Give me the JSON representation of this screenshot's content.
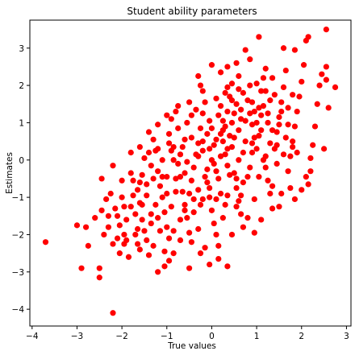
{
  "chart_data": {
    "type": "scatter",
    "title": "Student ability parameters",
    "xlabel": "True values",
    "ylabel": "Estimates",
    "xlim": [
      -4.05,
      3.1
    ],
    "ylim": [
      -4.45,
      3.75
    ],
    "xticks": [
      -4,
      -3,
      -2,
      -1,
      0,
      1,
      2,
      3
    ],
    "yticks": [
      -4,
      -3,
      -2,
      -1,
      0,
      1,
      2,
      3
    ],
    "grid": false,
    "marker_color": "#ff0000",
    "points": [
      [
        -3.7,
        -2.2
      ],
      [
        -2.2,
        -4.1
      ],
      [
        -2.9,
        -2.9
      ],
      [
        -2.5,
        -2.9
      ],
      [
        -2.5,
        -3.15
      ],
      [
        -3.0,
        -1.75
      ],
      [
        -2.8,
        -1.8
      ],
      [
        -2.75,
        -2.3
      ],
      [
        -2.6,
        -1.55
      ],
      [
        -2.45,
        -1.35
      ],
      [
        -2.45,
        -0.5
      ],
      [
        -2.2,
        -0.15
      ],
      [
        -2.35,
        -1.05
      ],
      [
        -2.15,
        -1.3
      ],
      [
        -2.3,
        -1.8
      ],
      [
        -2.1,
        -2.1
      ],
      [
        -1.95,
        -2.25
      ],
      [
        -1.85,
        -2.6
      ],
      [
        -2.05,
        -2.5
      ],
      [
        -2.2,
        -2.25
      ],
      [
        -1.9,
        -2.15
      ],
      [
        -1.8,
        -0.35
      ],
      [
        -1.65,
        -0.8
      ],
      [
        -1.6,
        -1.15
      ],
      [
        -1.55,
        -1.6
      ],
      [
        -1.5,
        -1.9
      ],
      [
        -1.7,
        -2.0
      ],
      [
        -1.45,
        -2.15
      ],
      [
        -1.6,
        -2.4
      ],
      [
        -1.3,
        -2.3
      ],
      [
        -1.2,
        -3.0
      ],
      [
        -1.05,
        -2.85
      ],
      [
        -0.95,
        -2.7
      ],
      [
        -0.85,
        -2.5
      ],
      [
        -0.5,
        -2.9
      ],
      [
        -0.25,
        -2.5
      ],
      [
        -0.05,
        -2.8
      ],
      [
        0.15,
        -2.65
      ],
      [
        0.35,
        -2.85
      ],
      [
        -1.5,
        0.05
      ],
      [
        -1.4,
        0.2
      ],
      [
        -1.3,
        0.55
      ],
      [
        -1.25,
        0.25
      ],
      [
        -1.2,
        -0.3
      ],
      [
        -1.15,
        -0.7
      ],
      [
        -1.1,
        -1.0
      ],
      [
        -1.05,
        -1.4
      ],
      [
        -1.0,
        -1.8
      ],
      [
        -0.95,
        -2.1
      ],
      [
        -0.9,
        1.1
      ],
      [
        -0.95,
        0.7
      ],
      [
        -0.85,
        0.35
      ],
      [
        -0.8,
        1.3
      ],
      [
        -0.75,
        -0.1
      ],
      [
        -0.7,
        -0.45
      ],
      [
        -0.65,
        -0.85
      ],
      [
        -0.6,
        -1.2
      ],
      [
        -0.55,
        -1.55
      ],
      [
        -0.5,
        -1.95
      ],
      [
        -0.45,
        -2.2
      ],
      [
        -0.4,
        -0.2
      ],
      [
        -0.35,
        0.15
      ],
      [
        -0.3,
        0.45
      ],
      [
        -0.25,
        0.85
      ],
      [
        -0.2,
        1.25
      ],
      [
        -0.15,
        1.55
      ],
      [
        -0.1,
        -0.6
      ],
      [
        -0.05,
        -1.0
      ],
      [
        0.0,
        -1.35
      ],
      [
        0.05,
        -1.7
      ],
      [
        0.1,
        -2.0
      ],
      [
        0.15,
        -2.3
      ],
      [
        0.2,
        0.1
      ],
      [
        0.25,
        0.5
      ],
      [
        0.3,
        0.9
      ],
      [
        0.35,
        1.3
      ],
      [
        0.4,
        1.7
      ],
      [
        0.45,
        2.05
      ],
      [
        0.5,
        -0.35
      ],
      [
        0.55,
        -0.75
      ],
      [
        0.6,
        -1.1
      ],
      [
        0.65,
        -1.45
      ],
      [
        0.7,
        -1.8
      ],
      [
        0.75,
        2.95
      ],
      [
        0.85,
        2.7
      ],
      [
        1.05,
        3.3
      ],
      [
        0.9,
        0.2
      ],
      [
        0.95,
        0.6
      ],
      [
        1.0,
        1.0
      ],
      [
        1.05,
        1.4
      ],
      [
        1.1,
        1.85
      ],
      [
        1.15,
        2.2
      ],
      [
        1.2,
        -0.2
      ],
      [
        1.25,
        -0.55
      ],
      [
        1.3,
        -0.9
      ],
      [
        1.35,
        -1.3
      ],
      [
        1.1,
        -1.6
      ],
      [
        0.95,
        -1.95
      ],
      [
        1.4,
        0.3
      ],
      [
        1.45,
        0.75
      ],
      [
        1.5,
        1.15
      ],
      [
        1.55,
        1.55
      ],
      [
        1.6,
        1.95
      ],
      [
        1.65,
        2.4
      ],
      [
        1.6,
        3.0
      ],
      [
        1.7,
        -0.3
      ],
      [
        1.75,
        0.1
      ],
      [
        1.8,
        0.5
      ],
      [
        1.85,
        0.9
      ],
      [
        1.9,
        1.3
      ],
      [
        1.95,
        1.7
      ],
      [
        2.0,
        2.1
      ],
      [
        2.05,
        2.55
      ],
      [
        2.1,
        -0.45
      ],
      [
        2.15,
        -0.65
      ],
      [
        2.2,
        -0.3
      ],
      [
        2.25,
        0.4
      ],
      [
        2.3,
        0.9
      ],
      [
        2.35,
        1.5
      ],
      [
        2.4,
        2.0
      ],
      [
        2.45,
        2.3
      ],
      [
        2.55,
        2.15
      ],
      [
        2.6,
        1.4
      ],
      [
        2.5,
        0.3
      ],
      [
        2.55,
        2.5
      ],
      [
        2.55,
        3.5
      ],
      [
        2.1,
        3.2
      ],
      [
        2.15,
        3.3
      ],
      [
        2.75,
        1.95
      ],
      [
        1.85,
        2.95
      ],
      [
        -2.0,
        -1.0
      ],
      [
        -1.9,
        -1.6
      ],
      [
        -1.8,
        -1.25
      ],
      [
        -1.75,
        -0.55
      ],
      [
        -1.7,
        -1.45
      ],
      [
        -1.65,
        -1.85
      ],
      [
        -1.55,
        -0.4
      ],
      [
        -1.45,
        -0.95
      ],
      [
        -1.35,
        -1.7
      ],
      [
        -1.35,
        -0.15
      ],
      [
        -1.25,
        -1.2
      ],
      [
        -1.15,
        -1.9
      ],
      [
        -1.1,
        0.0
      ],
      [
        -1.0,
        -0.45
      ],
      [
        -0.95,
        0.45
      ],
      [
        -0.9,
        -1.25
      ],
      [
        -0.85,
        0.0
      ],
      [
        -0.8,
        -0.85
      ],
      [
        -0.75,
        0.85
      ],
      [
        -0.7,
        -1.6
      ],
      [
        -0.65,
        0.35
      ],
      [
        -0.6,
        -0.35
      ],
      [
        -0.55,
        1.0
      ],
      [
        -0.5,
        -0.9
      ],
      [
        -0.45,
        0.6
      ],
      [
        -0.4,
        -1.4
      ],
      [
        -0.35,
        1.35
      ],
      [
        -0.3,
        -0.8
      ],
      [
        -0.25,
        -1.2
      ],
      [
        -0.2,
        0.25
      ],
      [
        -0.15,
        -0.45
      ],
      [
        -0.1,
        0.7
      ],
      [
        -0.05,
        1.05
      ],
      [
        0.0,
        0.0
      ],
      [
        0.05,
        0.4
      ],
      [
        0.1,
        -0.3
      ],
      [
        0.15,
        1.2
      ],
      [
        0.2,
        -0.9
      ],
      [
        0.25,
        0.8
      ],
      [
        0.3,
        -1.2
      ],
      [
        0.35,
        0.3
      ],
      [
        0.4,
        -0.4
      ],
      [
        0.45,
        1.0
      ],
      [
        0.5,
        0.6
      ],
      [
        0.55,
        1.5
      ],
      [
        0.6,
        0.0
      ],
      [
        0.65,
        1.1
      ],
      [
        0.7,
        -0.6
      ],
      [
        0.75,
        0.5
      ],
      [
        0.8,
        1.6
      ],
      [
        0.85,
        -0.2
      ],
      [
        0.9,
        0.95
      ],
      [
        0.95,
        -1.05
      ],
      [
        1.0,
        0.3
      ],
      [
        1.05,
        -0.45
      ],
      [
        1.1,
        0.8
      ],
      [
        1.15,
        1.45
      ],
      [
        1.2,
        0.1
      ],
      [
        1.25,
        1.0
      ],
      [
        1.3,
        0.45
      ],
      [
        1.35,
        -0.7
      ],
      [
        1.4,
        1.75
      ],
      [
        1.45,
        -0.1
      ],
      [
        1.5,
        0.95
      ],
      [
        1.55,
        -0.9
      ],
      [
        1.65,
        0.6
      ],
      [
        1.7,
        1.4
      ],
      [
        1.75,
        -0.75
      ],
      [
        1.8,
        1.75
      ],
      [
        1.9,
        0.2
      ],
      [
        0.2,
        2.35
      ],
      [
        0.0,
        2.55
      ],
      [
        0.35,
        2.5
      ],
      [
        -0.3,
        2.25
      ],
      [
        0.55,
        2.6
      ],
      [
        0.85,
        2.0
      ],
      [
        1.2,
        2.45
      ],
      [
        1.35,
        2.2
      ],
      [
        1.0,
        2.05
      ],
      [
        0.6,
        2.25
      ],
      [
        -0.2,
        1.85
      ],
      [
        0.1,
        1.65
      ],
      [
        0.35,
        1.95
      ],
      [
        -0.5,
        1.55
      ],
      [
        -0.75,
        1.45
      ],
      [
        0.7,
        1.8
      ],
      [
        -1.0,
        1.2
      ],
      [
        -1.2,
        0.95
      ],
      [
        -1.4,
        0.75
      ],
      [
        -1.6,
        0.35
      ],
      [
        -1.8,
        0.2
      ],
      [
        -2.0,
        -0.55
      ],
      [
        -2.25,
        -0.9
      ],
      [
        -2.1,
        -1.5
      ],
      [
        -1.95,
        -2.0
      ],
      [
        -0.15,
        -2.35
      ],
      [
        0.45,
        -2.0
      ],
      [
        0.8,
        -1.55
      ],
      [
        1.5,
        -1.25
      ],
      [
        1.85,
        -1.05
      ],
      [
        2.0,
        -0.8
      ],
      [
        2.2,
        0.05
      ],
      [
        -0.3,
        -1.85
      ],
      [
        -0.7,
        -2.15
      ],
      [
        -1.05,
        -2.45
      ],
      [
        -1.4,
        -2.55
      ],
      [
        -1.65,
        -2.25
      ],
      [
        -0.85,
        -1.9
      ],
      [
        0.25,
        -1.55
      ],
      [
        0.55,
        -1.25
      ],
      [
        0.05,
        -0.1
      ],
      [
        0.1,
        0.55
      ],
      [
        -0.05,
        0.3
      ],
      [
        0.2,
        0.7
      ],
      [
        -0.1,
        -0.25
      ],
      [
        0.3,
        0.15
      ],
      [
        0.15,
        -0.5
      ],
      [
        -0.2,
        0.5
      ],
      [
        0.4,
        0.65
      ],
      [
        0.35,
        -0.15
      ],
      [
        0.0,
        0.85
      ],
      [
        0.25,
        1.05
      ],
      [
        -0.3,
        0.1
      ],
      [
        0.45,
        0.35
      ],
      [
        0.5,
        1.25
      ],
      [
        0.6,
        0.8
      ],
      [
        0.7,
        0.2
      ],
      [
        0.75,
        1.05
      ],
      [
        0.8,
        -0.45
      ],
      [
        0.9,
        0.45
      ],
      [
        -0.45,
        -0.55
      ],
      [
        -0.55,
        -0.05
      ],
      [
        -0.6,
        0.55
      ],
      [
        -0.7,
        0.15
      ],
      [
        -0.8,
        -0.5
      ],
      [
        -0.9,
        0.25
      ],
      [
        -1.0,
        -0.9
      ],
      [
        -1.1,
        -0.45
      ],
      [
        -1.2,
        0.3
      ],
      [
        -1.3,
        -0.5
      ],
      [
        0.95,
        1.3
      ],
      [
        1.05,
        0.65
      ],
      [
        1.15,
        0.0
      ],
      [
        1.25,
        1.25
      ],
      [
        1.35,
        0.8
      ],
      [
        1.45,
        0.4
      ],
      [
        1.55,
        1.3
      ],
      [
        1.6,
        0.15
      ],
      [
        1.7,
        0.95
      ],
      [
        1.8,
        0.35
      ],
      [
        -0.05,
        -0.75
      ],
      [
        0.1,
        -1.05
      ],
      [
        -0.2,
        -1.05
      ],
      [
        0.35,
        -0.95
      ],
      [
        -0.4,
        -1.05
      ],
      [
        0.55,
        -0.5
      ],
      [
        0.65,
        -0.95
      ],
      [
        -0.6,
        -1.35
      ],
      [
        0.2,
        1.45
      ],
      [
        0.45,
        1.6
      ],
      [
        -0.25,
        2.0
      ],
      [
        0.65,
        1.35
      ],
      [
        -0.45,
        1.2
      ],
      [
        0.9,
        1.55
      ],
      [
        1.1,
        1.2
      ],
      [
        1.3,
        1.6
      ],
      [
        1.2,
        1.85
      ],
      [
        0.85,
        1.25
      ],
      [
        0.6,
        1.9
      ],
      [
        0.3,
        1.8
      ],
      [
        -1.45,
        -0.65
      ],
      [
        -1.55,
        -1.2
      ],
      [
        -1.75,
        -0.95
      ],
      [
        -1.6,
        -0.6
      ],
      [
        -1.35,
        -1.45
      ],
      [
        -1.2,
        -1.55
      ],
      [
        -1.95,
        -1.25
      ],
      [
        -2.05,
        -1.75
      ],
      [
        -2.3,
        -1.5
      ],
      [
        -2.4,
        -2.0
      ]
    ]
  }
}
